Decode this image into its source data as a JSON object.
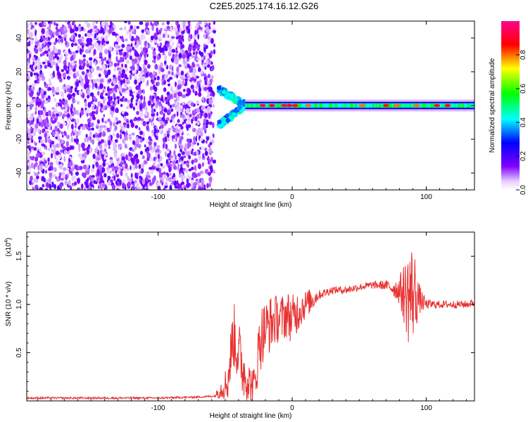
{
  "title": "C2E5.2025.174.16.12.G26",
  "chart_data": [
    {
      "type": "heatmap",
      "xlabel": "Height of straight line (km)",
      "ylabel": "Frequency (Hz)",
      "xlim": [
        -198,
        136
      ],
      "ylim": [
        -50,
        50
      ],
      "xticks": [
        -100,
        0,
        100
      ],
      "yticks": [
        -40,
        -20,
        0,
        20,
        40
      ],
      "colorbar": {
        "label": "Normalized spectral amplitude",
        "range": [
          0,
          1
        ],
        "ticks": [
          0.0,
          0.2,
          0.4,
          0.6,
          0.8
        ],
        "tick_labels": [
          "0.0",
          "0.2",
          "0.4",
          "0.6",
          "0.8"
        ],
        "colormap": [
          "#ffffff",
          "#8000ff",
          "#0000ff",
          "#00ffff",
          "#00ff00",
          "#ffff00",
          "#ff0000",
          "#ff00a0"
        ]
      },
      "regions": [
        {
          "x_range": [
            -198,
            -58
          ],
          "freq_range": [
            -50,
            50
          ],
          "amplitude": 0.1,
          "pattern": "scattered noise"
        },
        {
          "x_range": [
            -55,
            -35
          ],
          "freq_range": [
            -15,
            12
          ],
          "amplitude": 0.4,
          "pattern": "converging streaks"
        },
        {
          "x_range": [
            -35,
            136
          ],
          "freq_center": 0,
          "amplitude": 0.45,
          "pattern": "steady band near 0 Hz"
        }
      ],
      "ridge_peaks": [
        {
          "x": -22,
          "value": 0.95
        },
        {
          "x": -15,
          "value": 0.9
        },
        {
          "x": -6,
          "value": 0.95
        },
        {
          "x": -2,
          "value": 0.9
        },
        {
          "x": 2,
          "value": 0.85
        },
        {
          "x": 12,
          "value": 0.8
        },
        {
          "x": 52,
          "value": 0.8
        },
        {
          "x": 70,
          "value": 0.85
        },
        {
          "x": 78,
          "value": 0.8
        },
        {
          "x": 93,
          "value": 0.8
        },
        {
          "x": 108,
          "value": 0.85
        },
        {
          "x": 116,
          "value": 0.85
        }
      ]
    },
    {
      "type": "line",
      "xlabel": "Height of straight line (km)",
      "ylabel": "SNR (10 * v/v)",
      "multiplier_label": "(x10",
      "multiplier_exp": "4",
      "multiplier_close": ")",
      "xlim": [
        -198,
        136
      ],
      "ylim": [
        0,
        1.75
      ],
      "xticks": [
        -100,
        0,
        100
      ],
      "yticks": [
        0.5,
        1.0,
        1.5
      ],
      "ytick_labels": [
        "0.5",
        "1.0",
        "1.5"
      ],
      "series": [
        {
          "color": "#e83030",
          "x": [
            -198,
            -150,
            -100,
            -70,
            -58,
            -48,
            -44,
            -40,
            -36,
            -32,
            -28,
            -24,
            -20,
            -16,
            -12,
            -8,
            -4,
            0,
            5,
            10,
            15,
            20,
            30,
            40,
            50,
            60,
            70,
            75,
            80,
            85,
            88,
            92,
            95,
            100,
            110,
            120,
            130,
            136
          ],
          "values": [
            0.03,
            0.03,
            0.03,
            0.04,
            0.05,
            0.2,
            0.7,
            0.5,
            0.3,
            0.2,
            0.15,
            0.65,
            0.75,
            0.8,
            0.85,
            0.85,
            0.9,
            0.85,
            0.95,
            1.0,
            1.05,
            1.1,
            1.15,
            1.15,
            1.18,
            1.2,
            1.2,
            1.17,
            1.15,
            1.1,
            1.1,
            1.12,
            1.05,
            1.0,
            1.0,
            1.0,
            1.0,
            1.02
          ],
          "noise": [
            0.01,
            0.01,
            0.01,
            0.01,
            0.01,
            0.2,
            0.35,
            0.35,
            0.3,
            0.2,
            0.2,
            0.35,
            0.3,
            0.3,
            0.25,
            0.25,
            0.25,
            0.25,
            0.22,
            0.15,
            0.12,
            0.05,
            0.04,
            0.04,
            0.04,
            0.04,
            0.05,
            0.08,
            0.15,
            0.4,
            0.6,
            0.4,
            0.15,
            0.05,
            0.04,
            0.04,
            0.04,
            0.04
          ]
        }
      ]
    }
  ]
}
